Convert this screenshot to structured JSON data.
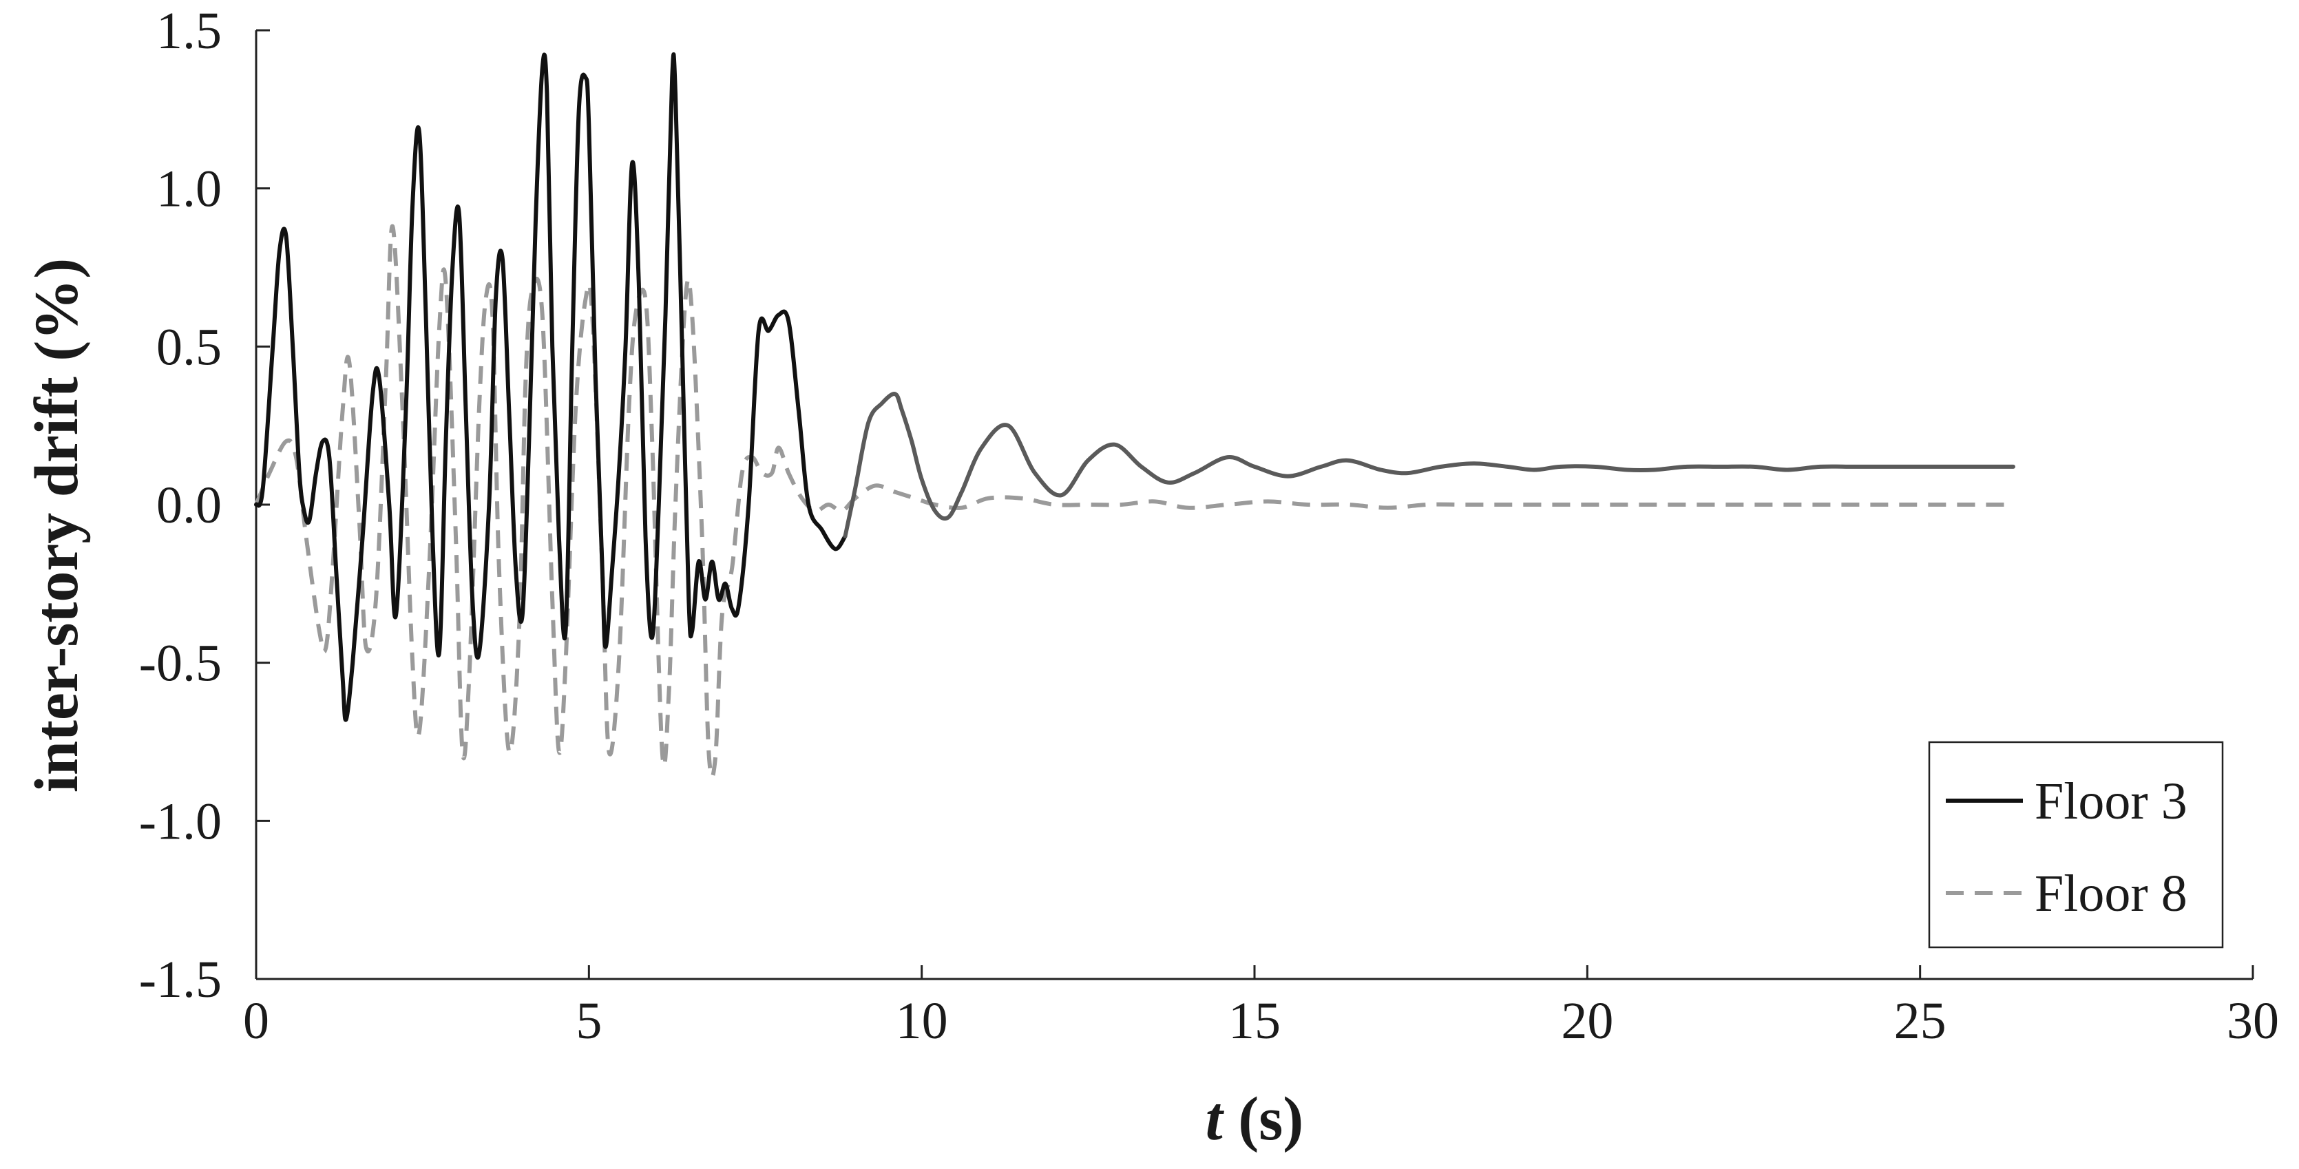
{
  "chart_data": {
    "type": "line",
    "xlabel": {
      "italic": "t",
      "rest": " (s)"
    },
    "ylabel": "inter-story drift (%)",
    "xlim": [
      0,
      30
    ],
    "ylim": [
      -1.5,
      1.5
    ],
    "xticks": [
      0,
      5,
      10,
      15,
      20,
      25,
      30
    ],
    "xtick_labels": [
      "0",
      "5",
      "10",
      "15",
      "20",
      "25",
      "30"
    ],
    "yticks": [
      -1.5,
      -1.0,
      -0.5,
      0.0,
      0.5,
      1.0,
      1.5
    ],
    "ytick_labels": [
      "-1.5",
      "-1.0",
      "-0.5",
      "0.0",
      "0.5",
      "1.0",
      "1.5"
    ],
    "grid": false,
    "legend_position": "bottom-right",
    "series": [
      {
        "name": "Floor 3",
        "style": "solid",
        "color_strong": "#111111",
        "color_faded": "#5a5a5a",
        "fade_after_x": 8.8,
        "x": [
          0.0,
          0.1,
          0.25,
          0.35,
          0.45,
          0.55,
          0.65,
          0.72,
          0.8,
          0.9,
          1.0,
          1.1,
          1.2,
          1.3,
          1.35,
          1.45,
          1.6,
          1.75,
          1.85,
          2.0,
          2.1,
          2.25,
          2.35,
          2.45,
          2.55,
          2.65,
          2.75,
          2.85,
          2.95,
          3.05,
          3.15,
          3.25,
          3.35,
          3.5,
          3.6,
          3.7,
          3.8,
          3.9,
          4.0,
          4.1,
          4.2,
          4.3,
          4.37,
          4.45,
          4.55,
          4.65,
          4.75,
          4.85,
          4.95,
          5.0,
          5.1,
          5.2,
          5.25,
          5.35,
          5.45,
          5.55,
          5.65,
          5.75,
          5.85,
          5.95,
          6.05,
          6.15,
          6.25,
          6.3,
          6.4,
          6.5,
          6.55,
          6.65,
          6.75,
          6.85,
          6.95,
          7.05,
          7.15,
          7.25,
          7.4,
          7.55,
          7.7,
          7.85,
          8.0,
          8.15,
          8.3,
          8.5,
          8.7,
          8.85,
          9.0,
          9.2,
          9.4,
          9.6,
          9.7,
          9.85,
          10.0,
          10.2,
          10.4,
          10.6,
          10.9,
          11.3,
          11.7,
          12.1,
          12.5,
          12.9,
          13.3,
          13.7,
          14.1,
          14.6,
          15.0,
          15.5,
          16.0,
          16.4,
          16.9,
          17.3,
          17.8,
          18.3,
          18.8,
          19.2,
          19.6,
          20.1,
          20.6,
          21.0,
          21.5,
          22.0,
          22.5,
          23.0,
          23.5,
          24.0,
          24.5,
          25.0,
          25.5,
          26.0,
          26.4
        ],
        "y": [
          0.0,
          0.05,
          0.5,
          0.8,
          0.85,
          0.5,
          0.1,
          -0.02,
          -0.05,
          0.1,
          0.2,
          0.15,
          -0.2,
          -0.55,
          -0.68,
          -0.5,
          -0.1,
          0.35,
          0.4,
          0.0,
          -0.35,
          0.3,
          0.95,
          1.18,
          0.6,
          -0.1,
          -0.47,
          0.2,
          0.75,
          0.92,
          0.3,
          -0.3,
          -0.47,
          0.0,
          0.65,
          0.78,
          0.3,
          -0.2,
          -0.35,
          0.2,
          0.9,
          1.38,
          1.3,
          0.5,
          -0.1,
          -0.4,
          0.5,
          1.25,
          1.35,
          1.2,
          0.4,
          -0.2,
          -0.45,
          -0.2,
          0.1,
          0.5,
          1.08,
          0.7,
          -0.1,
          -0.42,
          0.0,
          0.6,
          1.35,
          1.3,
          0.5,
          -0.3,
          -0.4,
          -0.18,
          -0.3,
          -0.18,
          -0.3,
          -0.25,
          -0.33,
          -0.32,
          0.0,
          0.55,
          0.55,
          0.6,
          0.58,
          0.3,
          0.0,
          -0.08,
          -0.14,
          -0.1,
          0.05,
          0.26,
          0.32,
          0.35,
          0.3,
          0.2,
          0.08,
          -0.02,
          -0.04,
          0.04,
          0.18,
          0.25,
          0.1,
          0.03,
          0.14,
          0.19,
          0.12,
          0.07,
          0.1,
          0.15,
          0.12,
          0.09,
          0.12,
          0.14,
          0.11,
          0.1,
          0.12,
          0.13,
          0.12,
          0.11,
          0.12,
          0.12,
          0.11,
          0.11,
          0.12,
          0.12,
          0.12,
          0.11,
          0.12,
          0.12,
          0.12,
          0.12,
          0.12,
          0.12,
          0.12
        ]
      },
      {
        "name": "Floor 8",
        "style": "dashed",
        "color": "#9a9a9a",
        "x": [
          0.0,
          0.2,
          0.45,
          0.6,
          0.75,
          0.95,
          1.05,
          1.15,
          1.3,
          1.4,
          1.55,
          1.65,
          1.8,
          1.95,
          2.05,
          2.2,
          2.35,
          2.45,
          2.6,
          2.75,
          2.85,
          3.0,
          3.1,
          3.2,
          3.35,
          3.45,
          3.55,
          3.65,
          3.8,
          3.95,
          4.05,
          4.15,
          4.3,
          4.45,
          4.55,
          4.65,
          4.8,
          4.95,
          5.05,
          5.2,
          5.3,
          5.45,
          5.6,
          5.7,
          5.85,
          5.95,
          6.1,
          6.2,
          6.3,
          6.45,
          6.55,
          6.7,
          6.8,
          6.9,
          7.0,
          7.15,
          7.3,
          7.45,
          7.6,
          7.75,
          7.85,
          8.0,
          8.2,
          8.4,
          8.6,
          8.8,
          9.0,
          9.3,
          9.6,
          9.9,
          10.2,
          10.6,
          11.0,
          11.5,
          12.0,
          12.5,
          13.0,
          13.5,
          14.0,
          14.6,
          15.2,
          15.8,
          16.4,
          17.0,
          17.6,
          18.2,
          18.8,
          19.5,
          20.2,
          21.0,
          22.0,
          23.0,
          24.0,
          25.0,
          26.4
        ],
        "y": [
          0.0,
          0.1,
          0.2,
          0.15,
          -0.1,
          -0.4,
          -0.45,
          -0.2,
          0.3,
          0.45,
          -0.05,
          -0.45,
          -0.3,
          0.4,
          0.88,
          0.3,
          -0.5,
          -0.72,
          -0.2,
          0.55,
          0.7,
          -0.1,
          -0.78,
          -0.55,
          0.3,
          0.65,
          0.6,
          -0.2,
          -0.78,
          -0.4,
          0.4,
          0.68,
          0.6,
          -0.3,
          -0.78,
          -0.5,
          0.3,
          0.65,
          0.6,
          -0.2,
          -0.78,
          -0.5,
          0.3,
          0.6,
          0.65,
          0.2,
          -0.78,
          -0.6,
          0.0,
          0.65,
          0.6,
          -0.1,
          -0.78,
          -0.8,
          -0.35,
          -0.2,
          0.1,
          0.15,
          0.1,
          0.1,
          0.18,
          0.1,
          0.02,
          -0.02,
          0.0,
          -0.02,
          0.02,
          0.06,
          0.04,
          0.02,
          0.0,
          -0.01,
          0.02,
          0.02,
          0.0,
          0.0,
          0.0,
          0.01,
          -0.01,
          0.0,
          0.01,
          0.0,
          0.0,
          -0.01,
          0.0,
          0.0,
          0.0,
          0.0,
          0.0,
          0.0,
          0.0,
          0.0,
          0.0,
          0.0,
          0.0
        ]
      }
    ]
  }
}
